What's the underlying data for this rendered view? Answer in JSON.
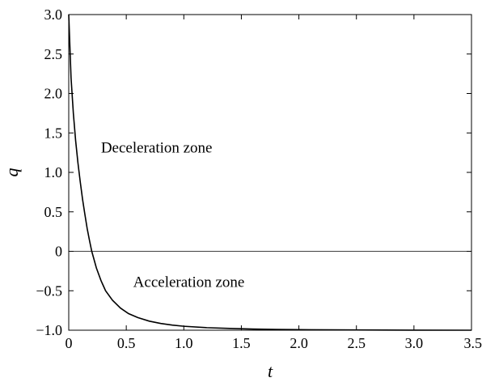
{
  "chart_data": {
    "type": "line",
    "xlabel": "t",
    "ylabel": "q",
    "xlim": [
      0,
      3.5
    ],
    "ylim": [
      -1.0,
      3.0
    ],
    "grid": false,
    "xticks": [
      {
        "value": 0,
        "label": "0"
      },
      {
        "value": 0.5,
        "label": "0.5"
      },
      {
        "value": 1.0,
        "label": "1.0"
      },
      {
        "value": 1.5,
        "label": "1.5"
      },
      {
        "value": 2.0,
        "label": "2.0"
      },
      {
        "value": 2.5,
        "label": "2.5"
      },
      {
        "value": 3.0,
        "label": "3.0"
      },
      {
        "value": 3.5,
        "label": "3.5"
      }
    ],
    "yticks": [
      {
        "value": -1.0,
        "label": "−1.0"
      },
      {
        "value": -0.5,
        "label": "−0.5"
      },
      {
        "value": 0,
        "label": "0"
      },
      {
        "value": 0.5,
        "label": "0.5"
      },
      {
        "value": 1.0,
        "label": "1.0"
      },
      {
        "value": 1.5,
        "label": "1.5"
      },
      {
        "value": 2.0,
        "label": "2.0"
      },
      {
        "value": 2.5,
        "label": "2.5"
      },
      {
        "value": 3.0,
        "label": "3.0"
      }
    ],
    "reference_line": {
      "y": 0
    },
    "series": [
      {
        "color": "#000000",
        "points": [
          [
            0.0,
            3.0
          ],
          [
            0.01,
            2.6
          ],
          [
            0.02,
            2.2
          ],
          [
            0.04,
            1.75
          ],
          [
            0.06,
            1.4
          ],
          [
            0.08,
            1.12
          ],
          [
            0.1,
            0.88
          ],
          [
            0.12,
            0.66
          ],
          [
            0.14,
            0.47
          ],
          [
            0.16,
            0.29
          ],
          [
            0.18,
            0.14
          ],
          [
            0.2,
            0.0
          ],
          [
            0.24,
            -0.21
          ],
          [
            0.28,
            -0.37
          ],
          [
            0.32,
            -0.5
          ],
          [
            0.38,
            -0.62
          ],
          [
            0.45,
            -0.72
          ],
          [
            0.52,
            -0.79
          ],
          [
            0.6,
            -0.84
          ],
          [
            0.7,
            -0.885
          ],
          [
            0.8,
            -0.915
          ],
          [
            0.9,
            -0.935
          ],
          [
            1.0,
            -0.95
          ],
          [
            1.2,
            -0.968
          ],
          [
            1.4,
            -0.978
          ],
          [
            1.6,
            -0.985
          ],
          [
            1.8,
            -0.99
          ],
          [
            2.0,
            -0.993
          ],
          [
            2.5,
            -0.997
          ],
          [
            3.0,
            -0.999
          ],
          [
            3.5,
            -1.0
          ]
        ]
      }
    ],
    "annotations": [
      {
        "text": "Deceleration zone",
        "x": 0.28,
        "y": 1.25
      },
      {
        "text": "Acceleration zone",
        "x": 0.56,
        "y": -0.45
      }
    ]
  }
}
